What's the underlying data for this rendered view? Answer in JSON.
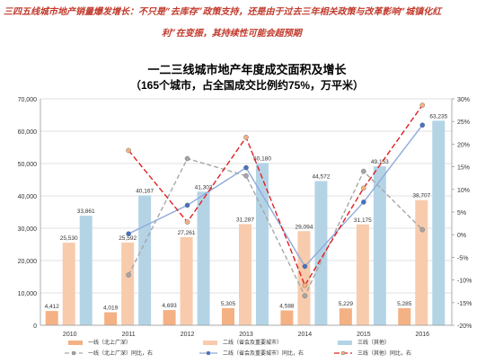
{
  "headline": {
    "line1": "三四五线城市地产销量爆发增长：不只是“去库存”政策支持，还是由于过去三年相关政策与改革影响“城镇化红",
    "line2": "利”在变振，其持续性可能会超预期"
  },
  "chart_data": {
    "type": "bar",
    "title": "一二三线城市地产年度成交面积及增长",
    "subtitle": "（165个城市，占全国成交比例约75%，万平米）",
    "categories": [
      "2010",
      "2011",
      "2012",
      "2013",
      "2014",
      "2015",
      "2016"
    ],
    "ylim": [
      0,
      70000
    ],
    "y_ticks": [
      "0",
      "10,000",
      "20,000",
      "30,000",
      "40,000",
      "50,000",
      "60,000",
      "70,000"
    ],
    "y2lim": [
      -20,
      30
    ],
    "y2_ticks": [
      "-20%",
      "-15%",
      "-10%",
      "-5%",
      "0%",
      "5%",
      "10%",
      "15%",
      "20%",
      "25%",
      "30%"
    ],
    "grid": true,
    "legend_position": "bottom",
    "series": [
      {
        "name": "一线（北上广深）",
        "kind": "bar",
        "axis": "left",
        "color": "#f4b183",
        "values": [
          4412,
          4019,
          4693,
          5305,
          4588,
          5229,
          5285
        ],
        "labels": [
          "4,412",
          "4,019",
          "4,693",
          "5,305",
          "4,588",
          "5,229",
          "5,285"
        ]
      },
      {
        "name": "二线（省会及重要城市）",
        "kind": "bar",
        "axis": "left",
        "color": "#f8cbad",
        "values": [
          25530,
          25592,
          27261,
          31287,
          29094,
          31175,
          38707
        ],
        "labels": [
          "25,530",
          "25,592",
          "27,261",
          "31,287",
          "29,094",
          "31,175",
          "38,707"
        ]
      },
      {
        "name": "三线（其他）",
        "kind": "bar",
        "axis": "left",
        "color": "#b4d4e6",
        "values": [
          33861,
          40167,
          41303,
          50180,
          44572,
          49153,
          63235
        ],
        "labels": [
          "33,861",
          "40,167",
          "41,303",
          "50,180",
          "44,572",
          "49,153",
          "63,235"
        ]
      },
      {
        "name": "一线（北上广深）同比，右",
        "kind": "line",
        "axis": "right",
        "color": "#a6a6a6",
        "dash": "5,3",
        "marker": "#a6a6a6",
        "values": [
          null,
          -8.9,
          16.8,
          13.0,
          -13.5,
          14.0,
          1.1
        ]
      },
      {
        "name": "二线（省会及重要城市）同比，右",
        "kind": "line",
        "axis": "right",
        "color": "#8faadc",
        "dash": "",
        "marker": "#4472c4",
        "values": [
          null,
          0.2,
          6.5,
          14.8,
          -7.0,
          7.2,
          24.2
        ]
      },
      {
        "name": "三线（其他）同比，右",
        "kind": "line",
        "axis": "right",
        "color": "#e02020",
        "dash": "6,3",
        "marker": "#f4b183",
        "values": [
          null,
          18.6,
          2.8,
          21.5,
          -11.2,
          10.3,
          28.6
        ]
      }
    ]
  }
}
